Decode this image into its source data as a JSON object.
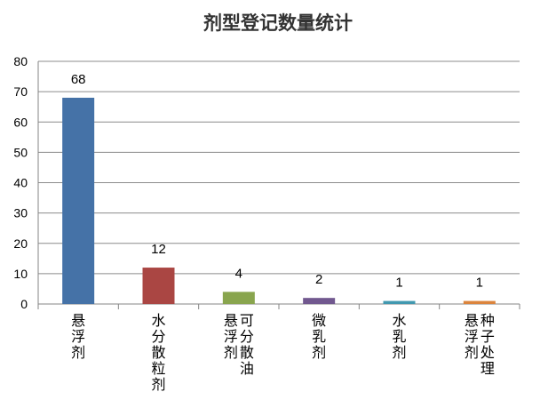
{
  "chart_data": {
    "type": "bar",
    "title": "剂型登记数量统计",
    "categories": [
      "悬浮剂",
      "水分散粒剂",
      "可分散油悬浮剂",
      "微乳剂",
      "水乳剂",
      "种子处理悬浮剂"
    ],
    "category_lines": [
      [
        "悬浮剂"
      ],
      [
        "水分散粒剂"
      ],
      [
        "可分散油",
        "悬浮剂"
      ],
      [
        "微乳剂"
      ],
      [
        "水乳剂"
      ],
      [
        "种子处理",
        "悬浮剂"
      ]
    ],
    "values": [
      68,
      12,
      4,
      2,
      1,
      1
    ],
    "data_labels": [
      "68",
      "12",
      "4",
      "2",
      "1",
      "1"
    ],
    "colors": [
      "#4572a7",
      "#aa4643",
      "#89a54e",
      "#71588f",
      "#4198af",
      "#db843d"
    ],
    "ylim": [
      0,
      80
    ],
    "yticks": [
      0,
      10,
      20,
      30,
      40,
      50,
      60,
      70,
      80
    ],
    "ytick_labels": [
      "0",
      "10",
      "20",
      "30",
      "40",
      "50",
      "60",
      "70",
      "80"
    ],
    "grid": true,
    "legend": "none"
  }
}
